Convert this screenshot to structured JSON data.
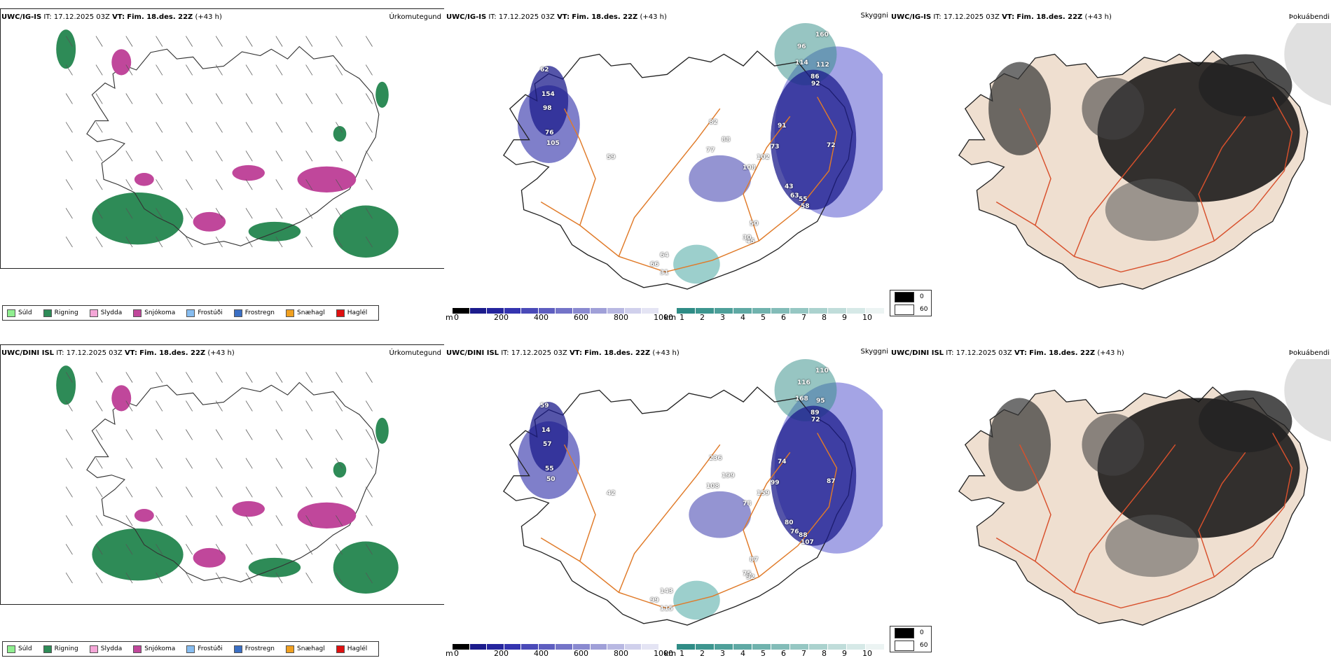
{
  "rows": [
    {
      "model": "UWC/IG-IS",
      "it_label": "IT:",
      "it_value": "17.12.2025 03Z",
      "vt_label": "VT:",
      "vt_value": "Fim. 18.des. 22Z",
      "lead": "(+43 h)",
      "right_title_precip": "Úrkomutegund",
      "right_title_vis": "Skyggni",
      "right_title_fog": "Þokuábendi",
      "ceiling_numbers": [
        "160",
        "96",
        "114",
        "112",
        "86",
        "92",
        "62",
        "154",
        "98",
        "76",
        "105",
        "59",
        "82",
        "88",
        "77",
        "108",
        "102",
        "73",
        "43",
        "55",
        "50",
        "45",
        "30",
        "64",
        "31",
        "66",
        "72",
        "91",
        "63",
        "58"
      ]
    },
    {
      "model": "UWC/DINI ISL",
      "it_label": "IT:",
      "it_value": "17.12.2025 03Z",
      "vt_label": "VT:",
      "vt_value": "Fim. 18.des. 22Z",
      "lead": "(+43 h)",
      "right_title_precip": "Úrkomutegund",
      "right_title_vis": "Skyggni",
      "right_title_fog": "Þokuábendi",
      "ceiling_numbers": [
        "110",
        "116",
        "168",
        "95",
        "89",
        "72",
        "59",
        "14",
        "57",
        "55",
        "50",
        "42",
        "236",
        "199",
        "108",
        "78",
        "159",
        "99",
        "80",
        "88",
        "87",
        "92",
        "75",
        "143",
        "115",
        "99",
        "87",
        "74",
        "76",
        "107"
      ]
    }
  ],
  "precip_legend": [
    {
      "label": "Súld",
      "color": "#90ee90"
    },
    {
      "label": "Rigning",
      "color": "#2e8b57"
    },
    {
      "label": "Slydda",
      "color": "#f4a6d7"
    },
    {
      "label": "Snjókoma",
      "color": "#c0479b"
    },
    {
      "label": "Frostúði",
      "color": "#87bdf0"
    },
    {
      "label": "Frostregn",
      "color": "#3a6fc4"
    },
    {
      "label": "Snæhagl",
      "color": "#f0a020"
    },
    {
      "label": "Haglél",
      "color": "#e01010"
    }
  ],
  "ceiling_bar": {
    "unit": "m",
    "ticks": [
      "0",
      "200",
      "400",
      "600",
      "800",
      "1000"
    ],
    "colors": [
      "#000000",
      "#1c1c8c",
      "#25259e",
      "#3434b0",
      "#4a4ab8",
      "#5e5ec0",
      "#7474c8",
      "#8a8ad0",
      "#a0a0d8",
      "#b8b8e2",
      "#d0d0ec",
      "#e4e4f4"
    ]
  },
  "vis_bar": {
    "unit": "km",
    "ticks": [
      "1",
      "2",
      "3",
      "4",
      "5",
      "6",
      "7",
      "8",
      "9",
      "10"
    ],
    "colors": [
      "#2f8c86",
      "#3d968f",
      "#4ea09a",
      "#5fa9a4",
      "#70b3ae",
      "#83bcb8",
      "#96c7c3",
      "#abd2ce",
      "#c0ddda",
      "#d6e9e7",
      "#ecf4f3"
    ]
  },
  "fog_legend": [
    {
      "label": "0",
      "color": "#000000"
    },
    {
      "label": "60",
      "color": "#ffffff"
    }
  ]
}
